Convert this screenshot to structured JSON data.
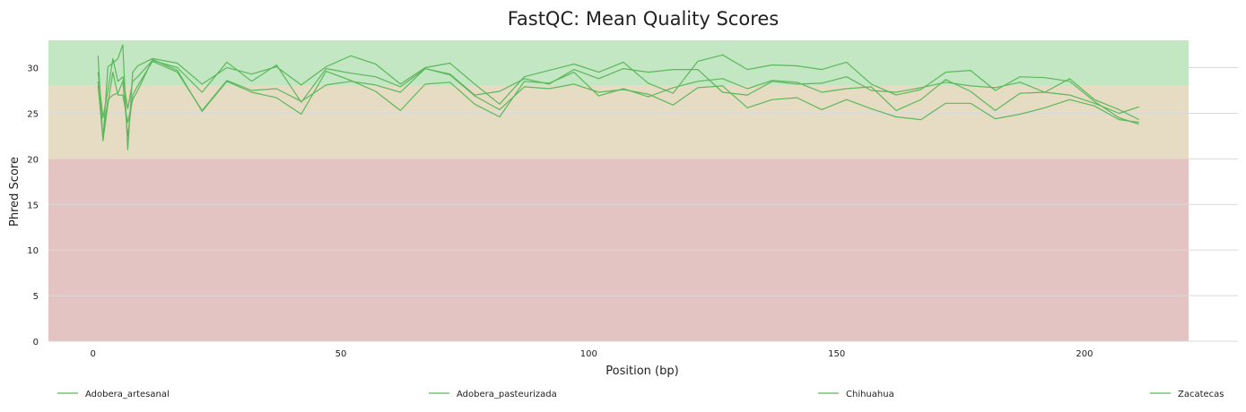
{
  "chart_data": {
    "type": "line",
    "title": "FastQC: Mean Quality Scores",
    "xlabel": "Position (bp)",
    "ylabel": "Phred Score",
    "xlim": [
      -9,
      221
    ],
    "ylim": [
      0,
      33
    ],
    "x_ticks": [
      0,
      50,
      100,
      150,
      200
    ],
    "y_ticks": [
      0,
      5,
      10,
      15,
      20,
      25,
      30
    ],
    "grid": true,
    "legend_position": "bottom",
    "line_color": "#5cb85c",
    "bands": [
      {
        "from": 28,
        "to": 33,
        "color": "#c3e6c3"
      },
      {
        "from": 20,
        "to": 28,
        "color": "#e6dcc3"
      },
      {
        "from": 0,
        "to": 20,
        "color": "#e4c3c3"
      }
    ],
    "series": [
      {
        "name": "Adobera_artesanal",
        "x": [
          1,
          2,
          3,
          4,
          5,
          6,
          7,
          8,
          9,
          12,
          17,
          22,
          27,
          32,
          37,
          42,
          47,
          52,
          57,
          62,
          67,
          72,
          77,
          82,
          87,
          92,
          97,
          102,
          107,
          112,
          117,
          122,
          127,
          132,
          137,
          142,
          147,
          152,
          157,
          162,
          167,
          172,
          177,
          182,
          187,
          192,
          197,
          202,
          207,
          211
        ],
        "y": [
          31.3,
          22.0,
          30.1,
          30.5,
          31.0,
          32.5,
          21.0,
          29.5,
          30.2,
          31.0,
          30.5,
          28.2,
          30.0,
          29.3,
          30.1,
          28.1,
          30.1,
          31.3,
          30.4,
          28.2,
          30.0,
          30.5,
          28.2,
          26.0,
          29.0,
          29.7,
          30.4,
          29.5,
          30.6,
          28.3,
          27.2,
          30.7,
          31.4,
          29.8,
          30.3,
          30.2,
          29.8,
          30.6,
          28.2,
          27.0,
          27.6,
          29.5,
          29.7,
          27.5,
          29.0,
          28.9,
          28.5,
          26.3,
          24.5,
          23.8
        ]
      },
      {
        "name": "Adobera_pasteurizada",
        "x": [
          1,
          2,
          3,
          4,
          5,
          6,
          7,
          8,
          9,
          12,
          17,
          22,
          27,
          32,
          37,
          42,
          47,
          52,
          57,
          62,
          67,
          72,
          77,
          82,
          87,
          92,
          97,
          102,
          107,
          112,
          117,
          122,
          127,
          132,
          137,
          142,
          147,
          152,
          157,
          162,
          167,
          172,
          177,
          182,
          187,
          192,
          197,
          202,
          207,
          211
        ],
        "y": [
          29.5,
          24.5,
          27.5,
          31.0,
          28.5,
          29.0,
          25.5,
          28.5,
          29.0,
          30.8,
          30.0,
          27.3,
          30.6,
          28.5,
          30.3,
          26.2,
          29.9,
          29.4,
          29.0,
          27.9,
          29.9,
          29.3,
          27.0,
          27.4,
          28.8,
          28.2,
          29.8,
          28.8,
          29.9,
          29.5,
          29.8,
          29.8,
          27.3,
          27.0,
          28.5,
          28.2,
          28.3,
          29.0,
          27.5,
          27.3,
          27.8,
          28.4,
          28.0,
          27.8,
          28.4,
          27.3,
          28.8,
          26.5,
          25.4,
          24.3
        ]
      },
      {
        "name": "Chihuahua",
        "x": [
          1,
          2,
          3,
          4,
          5,
          6,
          7,
          8,
          9,
          12,
          17,
          22,
          27,
          32,
          37,
          42,
          47,
          52,
          57,
          62,
          67,
          72,
          77,
          82,
          87,
          92,
          97,
          102,
          107,
          112,
          117,
          122,
          127,
          132,
          137,
          142,
          147,
          152,
          157,
          162,
          167,
          172,
          177,
          182,
          187,
          192,
          197,
          202,
          207,
          211
        ],
        "y": [
          28.0,
          22.5,
          26.5,
          27.0,
          27.2,
          28.5,
          22.5,
          27.0,
          28.0,
          30.7,
          29.5,
          25.3,
          28.6,
          27.5,
          27.7,
          26.3,
          28.1,
          28.5,
          28.1,
          27.3,
          29.9,
          29.2,
          26.9,
          25.4,
          27.9,
          27.7,
          28.2,
          27.3,
          27.6,
          27.1,
          25.9,
          27.8,
          28.0,
          25.6,
          26.5,
          26.7,
          25.4,
          26.5,
          25.5,
          24.6,
          24.3,
          26.1,
          26.1,
          24.4,
          24.9,
          25.6,
          26.5,
          25.8,
          24.3,
          24.0
        ]
      },
      {
        "name": "Zacatecas",
        "x": [
          1,
          2,
          3,
          4,
          5,
          6,
          7,
          8,
          9,
          12,
          17,
          22,
          27,
          32,
          37,
          42,
          47,
          52,
          57,
          62,
          67,
          72,
          77,
          82,
          87,
          92,
          97,
          102,
          107,
          112,
          117,
          122,
          127,
          132,
          137,
          142,
          147,
          152,
          157,
          162,
          167,
          172,
          177,
          182,
          187,
          192,
          197,
          202,
          207,
          211
        ],
        "y": [
          28.5,
          22.0,
          26.0,
          29.5,
          27.0,
          27.0,
          24.0,
          26.5,
          27.5,
          30.9,
          29.7,
          25.2,
          28.5,
          27.3,
          26.7,
          24.9,
          29.6,
          28.6,
          27.4,
          25.3,
          28.2,
          28.4,
          26.0,
          24.6,
          28.5,
          28.3,
          29.5,
          26.9,
          27.7,
          26.8,
          27.8,
          28.5,
          28.8,
          27.7,
          28.6,
          28.4,
          27.3,
          27.7,
          27.9,
          25.3,
          26.5,
          28.7,
          27.4,
          25.3,
          27.2,
          27.3,
          27.0,
          26.1,
          25.0,
          25.7
        ]
      }
    ]
  }
}
